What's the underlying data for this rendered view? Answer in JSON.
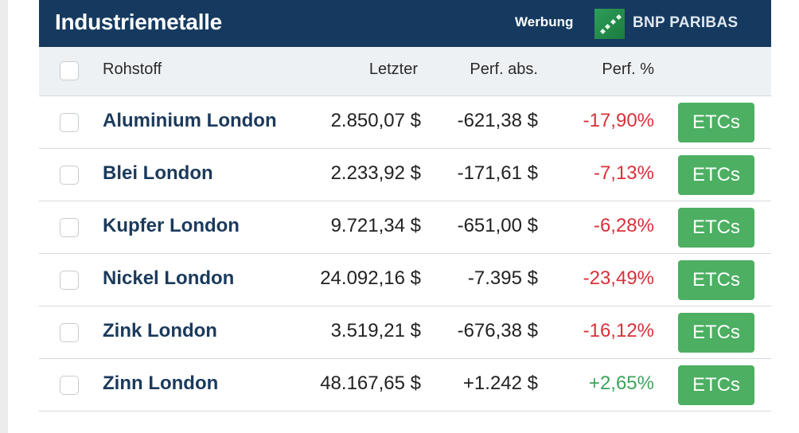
{
  "header": {
    "title": "Industriemetalle",
    "ad_label": "Werbung",
    "brand": "BNP PARIBAS",
    "brand_color": "#2e9e5a",
    "bg_color": "#163a5f"
  },
  "columns": {
    "name": "Rohstoff",
    "last": "Letzter",
    "abs": "Perf. abs.",
    "pct": "Perf. %"
  },
  "rows": [
    {
      "name": "Aluminium London",
      "last": "2.850,07 $",
      "abs": "-621,38 $",
      "pct": "-17,90%",
      "trend": "neg",
      "button": "ETCs"
    },
    {
      "name": "Blei London",
      "last": "2.233,92 $",
      "abs": "-171,61 $",
      "pct": "-7,13%",
      "trend": "neg",
      "button": "ETCs"
    },
    {
      "name": "Kupfer London",
      "last": "9.721,34 $",
      "abs": "-651,00 $",
      "pct": "-6,28%",
      "trend": "neg",
      "button": "ETCs"
    },
    {
      "name": "Nickel London",
      "last": "24.092,16 $",
      "abs": "-7.395 $",
      "pct": "-23,49%",
      "trend": "neg",
      "button": "ETCs"
    },
    {
      "name": "Zink London",
      "last": "3.519,21 $",
      "abs": "-676,38 $",
      "pct": "-16,12%",
      "trend": "neg",
      "button": "ETCs"
    },
    {
      "name": "Zinn London",
      "last": "48.167,65 $",
      "abs": "+1.242 $",
      "pct": "+2,65%",
      "trend": "pos",
      "button": "ETCs"
    }
  ],
  "colors": {
    "negative": "#d9303a",
    "positive": "#3da35d",
    "button": "#4caf62"
  }
}
